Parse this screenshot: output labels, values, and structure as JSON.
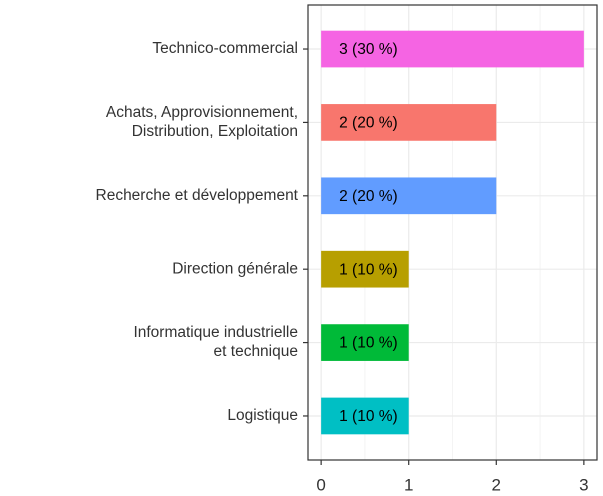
{
  "chart_data": {
    "type": "barh",
    "categories": [
      [
        "Technico-commercial"
      ],
      [
        "Achats, Approvisionnement,",
        "Distribution, Exploitation"
      ],
      [
        "Recherche et développement"
      ],
      [
        "Direction générale"
      ],
      [
        "Informatique industrielle",
        "et technique"
      ],
      [
        "Logistique"
      ]
    ],
    "values": [
      3,
      2,
      2,
      1,
      1,
      1
    ],
    "value_labels": [
      "3 (30 %)",
      "2 (20 %)",
      "2 (20 %)",
      "1 (10 %)",
      "1 (10 %)",
      "1 (10 %)"
    ],
    "colors": [
      "#F564E3",
      "#F8766D",
      "#619CFF",
      "#B79F00",
      "#00BA38",
      "#00BFC4"
    ],
    "xlim": [
      -0.15,
      3.15
    ],
    "xticks": [
      0,
      1,
      2,
      3
    ],
    "minor_xticks": [
      0.5,
      1.5,
      2.5
    ],
    "grid": true
  }
}
